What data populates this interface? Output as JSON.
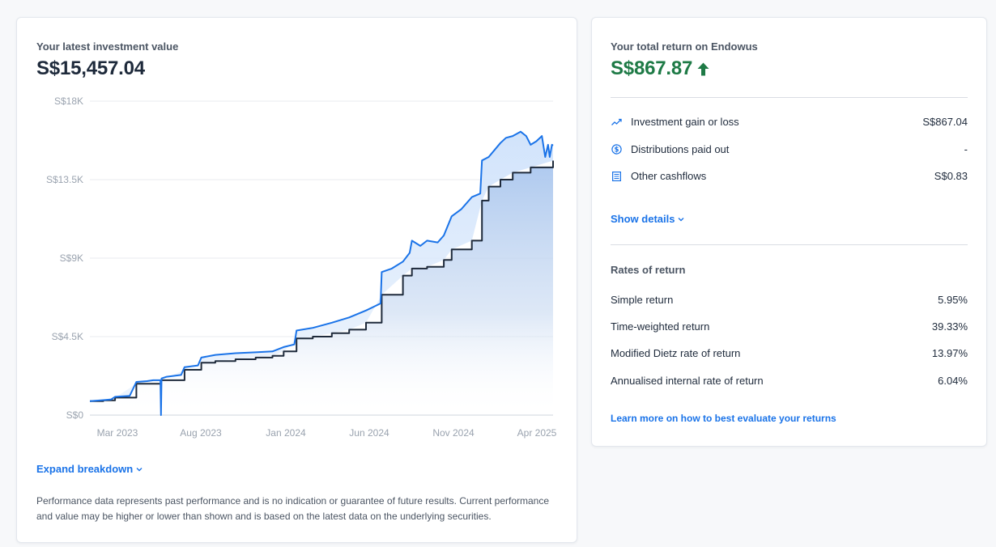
{
  "investment": {
    "label": "Your latest investment value",
    "value": "S$15,457.04"
  },
  "chart_data": {
    "type": "area",
    "y_ticks": [
      "S$0",
      "S$4.5K",
      "S$9K",
      "S$13.5K",
      "S$18K"
    ],
    "ylim": [
      0,
      18000
    ],
    "x_ticks": [
      "Mar 2023",
      "Aug 2023",
      "Jan 2024",
      "Jun 2024",
      "Nov 2024",
      "Apr 2025"
    ],
    "grid": true,
    "series": [
      {
        "color": "#1a73e8",
        "points": [
          [
            "2023-01-08",
            800
          ],
          [
            "2023-02-01",
            860
          ],
          [
            "2023-02-15",
            900
          ],
          [
            "2023-02-22",
            1050
          ],
          [
            "2023-03-20",
            1100
          ],
          [
            "2023-04-01",
            1900
          ],
          [
            "2023-04-20",
            1950
          ],
          [
            "2023-05-01",
            2000
          ],
          [
            "2023-05-14",
            2000
          ],
          [
            "2023-05-15",
            0
          ],
          [
            "2023-05-16",
            2100
          ],
          [
            "2023-05-25",
            2200
          ],
          [
            "2023-06-20",
            2300
          ],
          [
            "2023-06-26",
            2750
          ],
          [
            "2023-07-20",
            2850
          ],
          [
            "2023-07-26",
            3300
          ],
          [
            "2023-08-20",
            3450
          ],
          [
            "2023-09-25",
            3550
          ],
          [
            "2023-10-31",
            3600
          ],
          [
            "2023-11-30",
            3650
          ],
          [
            "2023-12-20",
            3900
          ],
          [
            "2024-01-08",
            4050
          ],
          [
            "2024-01-12",
            4850
          ],
          [
            "2024-02-10",
            5000
          ],
          [
            "2024-03-15",
            5300
          ],
          [
            "2024-04-15",
            5600
          ],
          [
            "2024-05-15",
            6000
          ],
          [
            "2024-06-10",
            6400
          ],
          [
            "2024-06-12",
            8200
          ],
          [
            "2024-06-30",
            8400
          ],
          [
            "2024-07-20",
            8800
          ],
          [
            "2024-08-01",
            9300
          ],
          [
            "2024-08-05",
            10000
          ],
          [
            "2024-08-20",
            9700
          ],
          [
            "2024-09-01",
            10000
          ],
          [
            "2024-09-20",
            9900
          ],
          [
            "2024-10-01",
            10300
          ],
          [
            "2024-10-15",
            11400
          ],
          [
            "2024-11-01",
            11800
          ],
          [
            "2024-11-20",
            12500
          ],
          [
            "2024-12-05",
            12700
          ],
          [
            "2024-12-08",
            14600
          ],
          [
            "2024-12-20",
            14800
          ],
          [
            "2025-01-10",
            15600
          ],
          [
            "2025-01-20",
            15900
          ],
          [
            "2025-02-01",
            16000
          ],
          [
            "2025-02-15",
            16250
          ],
          [
            "2025-02-25",
            16000
          ],
          [
            "2025-03-05",
            15500
          ],
          [
            "2025-03-15",
            15700
          ],
          [
            "2025-03-25",
            16000
          ],
          [
            "2025-03-31",
            14800
          ],
          [
            "2025-04-05",
            15500
          ],
          [
            "2025-04-08",
            14800
          ],
          [
            "2025-04-12",
            15500
          ],
          [
            "2025-04-14",
            15457.04
          ]
        ]
      },
      {
        "color": "#1e2a3b",
        "points": [
          [
            "2023-01-08",
            800
          ],
          [
            "2023-02-01",
            850
          ],
          [
            "2023-02-22",
            1000
          ],
          [
            "2023-04-01",
            1800
          ],
          [
            "2023-05-15",
            2000
          ],
          [
            "2023-06-26",
            2600
          ],
          [
            "2023-07-26",
            3000
          ],
          [
            "2023-08-20",
            3100
          ],
          [
            "2023-09-25",
            3200
          ],
          [
            "2023-10-31",
            3300
          ],
          [
            "2023-11-30",
            3400
          ],
          [
            "2023-12-20",
            3650
          ],
          [
            "2024-01-12",
            4400
          ],
          [
            "2024-02-10",
            4500
          ],
          [
            "2024-03-15",
            4700
          ],
          [
            "2024-04-15",
            4900
          ],
          [
            "2024-05-15",
            5300
          ],
          [
            "2024-06-12",
            6900
          ],
          [
            "2024-07-20",
            8000
          ],
          [
            "2024-08-05",
            8400
          ],
          [
            "2024-09-01",
            8500
          ],
          [
            "2024-10-01",
            8900
          ],
          [
            "2024-10-15",
            9500
          ],
          [
            "2024-11-20",
            10000
          ],
          [
            "2024-12-08",
            12300
          ],
          [
            "2024-12-20",
            13100
          ],
          [
            "2025-01-10",
            13500
          ],
          [
            "2025-02-01",
            13900
          ],
          [
            "2025-03-05",
            14200
          ],
          [
            "2025-04-14",
            14589.17
          ]
        ]
      }
    ]
  },
  "expand": {
    "label": "Expand breakdown"
  },
  "disclaimer": "Performance data represents past performance and is no indication or guarantee of future results. Current performance and value may be higher or lower than shown and is based on the latest data on the underlying securities.",
  "returns": {
    "label": "Your total return on Endowus",
    "value": "S$867.87",
    "accent": "#1e7a46",
    "items": [
      {
        "icon": "trend-line-icon",
        "label": "Investment gain or loss",
        "value": "S$867.04"
      },
      {
        "icon": "dollar-coin-icon",
        "label": "Distributions paid out",
        "value": "-"
      },
      {
        "icon": "document-list-icon",
        "label": "Other cashflows",
        "value": "S$0.83"
      }
    ],
    "show_details": "Show details"
  },
  "rates": {
    "title": "Rates of return",
    "items": [
      {
        "label": "Simple return",
        "value": "5.95%"
      },
      {
        "label": "Time-weighted return",
        "value": "39.33%"
      },
      {
        "label": "Modified Dietz rate of return",
        "value": "13.97%"
      },
      {
        "label": "Annualised internal rate of return",
        "value": "6.04%"
      }
    ],
    "learn_more": "Learn more on how to best evaluate your returns"
  }
}
